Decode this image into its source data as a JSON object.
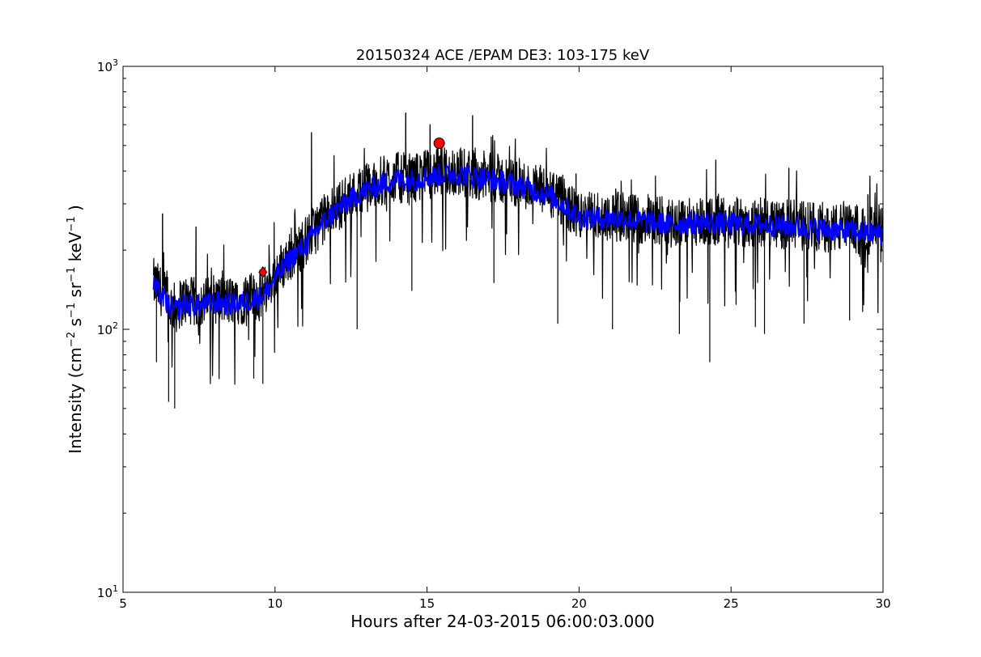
{
  "chart_data": {
    "type": "line",
    "title": "20150324 ACE /EPAM DE3: 103-175 keV",
    "xlabel": "Hours after 24-03-2015 06:00:03.000",
    "ylabel_parts": {
      "prefix": "Intensity (cm",
      "exp1": "−2",
      "s": " s",
      "exp2": "−1",
      "sr": " sr",
      "exp3": "−1",
      "kev": " keV",
      "exp4": "−1",
      "suffix": " )"
    },
    "xlim": [
      5,
      30
    ],
    "ylim": [
      10,
      1000
    ],
    "yscale": "log",
    "grid": false,
    "x_ticks": [
      "5",
      "10",
      "15",
      "20",
      "25",
      "30"
    ],
    "y_ticks": [
      {
        "base": "10",
        "exp": "1"
      },
      {
        "base": "10",
        "exp": "2"
      },
      {
        "base": "10",
        "exp": "3"
      }
    ],
    "series": [
      {
        "color": "#000000",
        "style": "raw",
        "x": [
          6.0,
          6.25,
          6.5,
          6.75,
          7.0,
          7.5,
          8.0,
          8.5,
          9.0,
          9.5,
          9.75,
          10.0,
          10.5,
          11.0,
          11.5,
          12.0,
          12.5,
          13.0,
          13.5,
          14.0,
          14.5,
          15.0,
          15.5,
          16.0,
          16.5,
          17.0,
          17.5,
          18.0,
          18.5,
          19.0,
          19.5,
          20.0,
          21.0,
          22.0,
          23.0,
          24.0,
          25.0,
          26.0,
          27.0,
          28.0,
          29.0,
          30.0
        ],
        "y": [
          150,
          140,
          125,
          120,
          130,
          125,
          130,
          128,
          130,
          135,
          145,
          160,
          190,
          215,
          255,
          290,
          320,
          345,
          365,
          380,
          375,
          390,
          395,
          400,
          390,
          380,
          370,
          360,
          345,
          330,
          300,
          270,
          270,
          262,
          255,
          260,
          255,
          255,
          250,
          245,
          240,
          235
        ],
        "spikes_up": [
          [
            6.3,
            275
          ],
          [
            7.4,
            245
          ],
          [
            11.2,
            560
          ],
          [
            14.3,
            665
          ],
          [
            15.1,
            600
          ],
          [
            16.5,
            650
          ],
          [
            19.9,
            390
          ],
          [
            24.5,
            440
          ],
          [
            26.9,
            410
          ],
          [
            29.5,
            325
          ]
        ],
        "spikes_down": [
          [
            6.1,
            75
          ],
          [
            6.5,
            53
          ],
          [
            6.7,
            50
          ],
          [
            9.3,
            65
          ],
          [
            9.6,
            62
          ],
          [
            12.7,
            100
          ],
          [
            14.5,
            140
          ],
          [
            17.2,
            150
          ],
          [
            19.3,
            105
          ],
          [
            21.1,
            100
          ],
          [
            23.3,
            96
          ],
          [
            24.3,
            75
          ],
          [
            25.8,
            102
          ],
          [
            26.1,
            96
          ],
          [
            27.4,
            105
          ],
          [
            28.9,
            108
          ]
        ]
      },
      {
        "color": "#0000ff",
        "style": "smoothed",
        "x": [
          6.0,
          6.25,
          6.5,
          6.75,
          7.0,
          7.5,
          8.0,
          8.5,
          9.0,
          9.5,
          9.75,
          10.0,
          10.5,
          11.0,
          11.5,
          12.0,
          12.5,
          13.0,
          13.5,
          14.0,
          14.5,
          15.0,
          15.5,
          16.0,
          16.5,
          17.0,
          17.5,
          18.0,
          18.5,
          19.0,
          19.5,
          20.0,
          21.0,
          22.0,
          23.0,
          24.0,
          25.0,
          26.0,
          27.0,
          28.0,
          29.0,
          30.0
        ],
        "y": [
          145,
          135,
          122,
          118,
          125,
          122,
          126,
          124,
          127,
          132,
          140,
          155,
          185,
          208,
          248,
          282,
          312,
          338,
          355,
          372,
          368,
          380,
          385,
          390,
          380,
          372,
          362,
          352,
          338,
          322,
          295,
          265,
          264,
          258,
          250,
          255,
          250,
          250,
          245,
          240,
          235,
          230
        ]
      }
    ],
    "markers": [
      {
        "shape": "diamond",
        "color": "#ff0000",
        "x": 9.6,
        "y": 165
      },
      {
        "shape": "circle",
        "color": "#ff0000",
        "x": 15.4,
        "y": 510
      }
    ]
  }
}
